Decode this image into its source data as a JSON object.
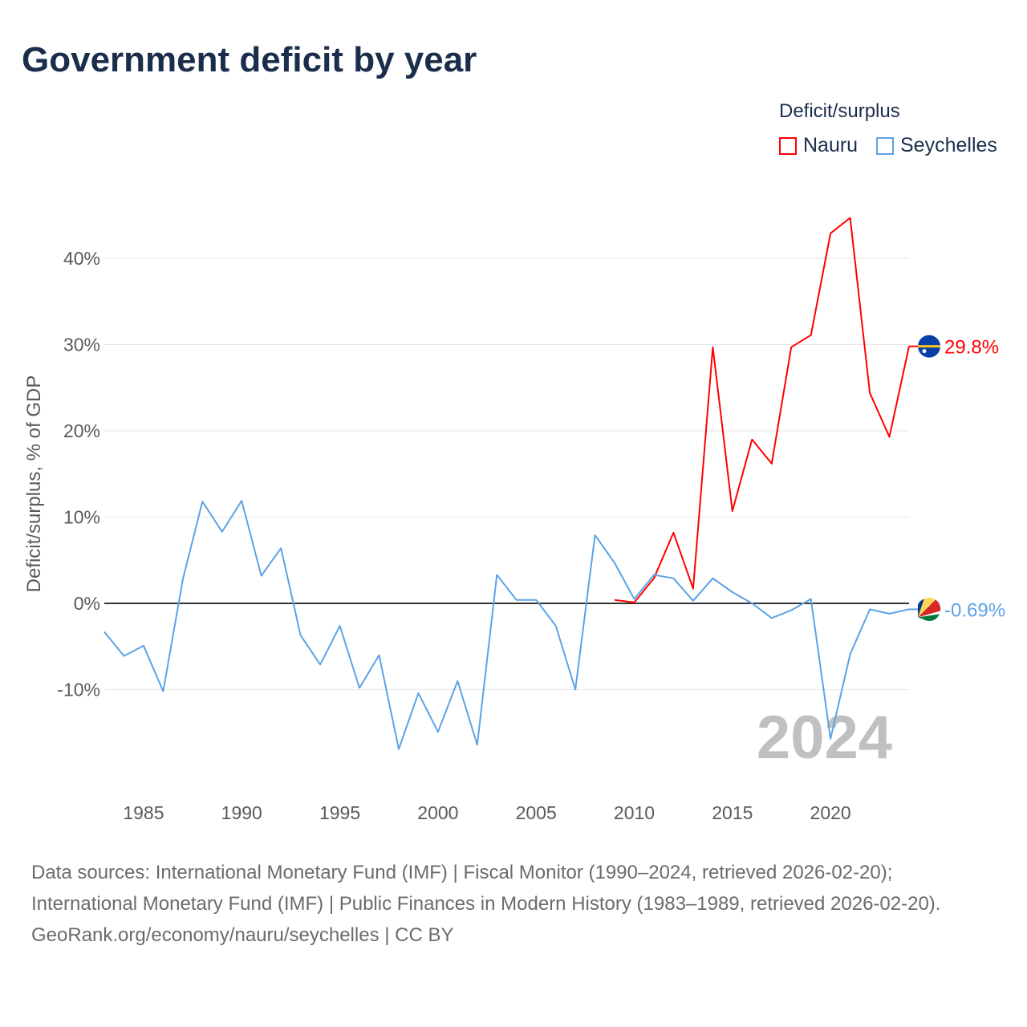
{
  "title": "Government deficit by year",
  "legend": {
    "title": "Deficit/surplus",
    "items": [
      {
        "name": "Nauru",
        "color": "#ff0000"
      },
      {
        "name": "Seychelles",
        "color": "#5ba3e6"
      }
    ]
  },
  "year_watermark": "2024",
  "sources": {
    "line1": "Data sources: International Monetary Fund (IMF) | Fiscal Monitor (1990–2024, retrieved 2026-02-20); International Monetary Fund (IMF) | Public Finances in Modern History (1983–1989, retrieved 2026-02-20).",
    "line2": "GeoRank.org/economy/nauru/seychelles | CC BY"
  },
  "chart_data": {
    "type": "line",
    "title": "Government deficit by year",
    "xlabel": "",
    "ylabel": "Deficit/surplus, % of GDP",
    "xlim": [
      1983,
      2024
    ],
    "ylim": [
      -20,
      45
    ],
    "x_ticks": [
      1985,
      1990,
      1995,
      2000,
      2005,
      2010,
      2015,
      2020
    ],
    "y_ticks": [
      -10,
      0,
      10,
      20,
      30,
      40
    ],
    "y_tick_labels": [
      "-10%",
      "0%",
      "10%",
      "20%",
      "30%",
      "40%"
    ],
    "grid": true,
    "legend_position": "top-right",
    "series": [
      {
        "name": "Nauru",
        "color": "#ff0000",
        "end_label": "29.8%",
        "x": [
          2009,
          2010,
          2011,
          2012,
          2013,
          2014,
          2015,
          2016,
          2017,
          2018,
          2019,
          2020,
          2021,
          2022,
          2023,
          2024
        ],
        "values": [
          0.4,
          0.1,
          2.9,
          8.2,
          1.7,
          29.7,
          10.7,
          19.0,
          16.2,
          29.7,
          31.1,
          42.9,
          44.7,
          24.4,
          19.3,
          29.8
        ]
      },
      {
        "name": "Seychelles",
        "color": "#5ba3e6",
        "end_label": "-0.69%",
        "x": [
          1983,
          1984,
          1985,
          1986,
          1987,
          1988,
          1989,
          1990,
          1991,
          1992,
          1993,
          1994,
          1995,
          1996,
          1997,
          1998,
          1999,
          2000,
          2001,
          2002,
          2003,
          2004,
          2005,
          2006,
          2007,
          2008,
          2009,
          2010,
          2011,
          2012,
          2013,
          2014,
          2015,
          2016,
          2017,
          2018,
          2019,
          2020,
          2021,
          2022,
          2023,
          2024
        ],
        "values": [
          -3.3,
          -6.1,
          -4.9,
          -10.2,
          2.8,
          11.8,
          8.3,
          11.9,
          3.2,
          6.4,
          -3.7,
          -7.1,
          -2.6,
          -9.8,
          -6.0,
          -16.9,
          -10.4,
          -14.9,
          -9.0,
          -16.4,
          3.3,
          0.4,
          0.4,
          -2.6,
          -10.0,
          7.9,
          4.7,
          0.5,
          3.3,
          2.9,
          0.3,
          2.9,
          1.3,
          0.0,
          -1.7,
          -0.8,
          0.5,
          -15.7,
          -5.9,
          -0.7,
          -1.2,
          -0.69
        ]
      }
    ]
  }
}
